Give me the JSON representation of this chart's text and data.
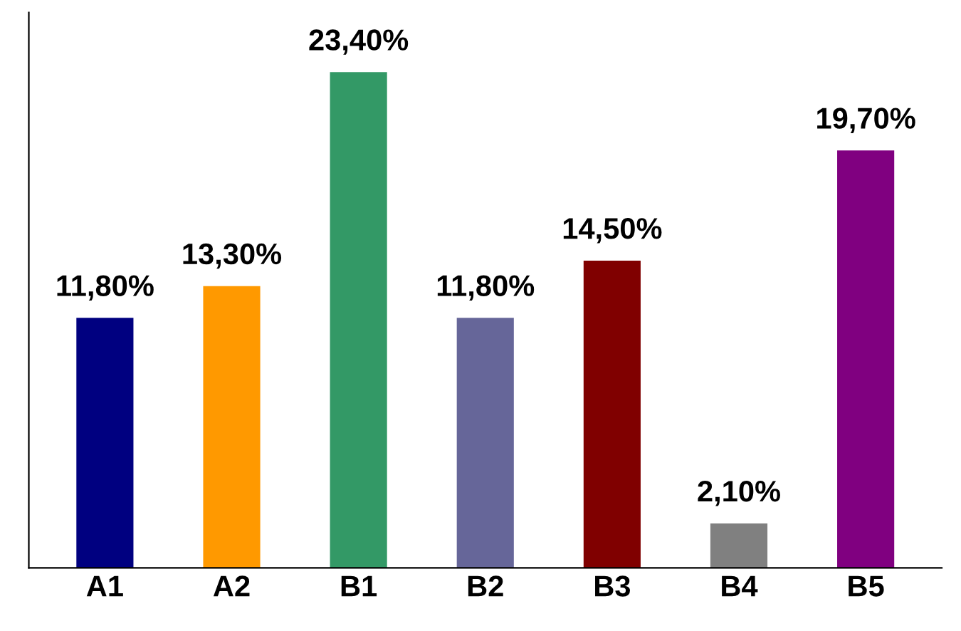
{
  "chart_data": {
    "type": "bar",
    "categories": [
      "A1",
      "A2",
      "B1",
      "B2",
      "B3",
      "B4",
      "B5"
    ],
    "values": [
      11.8,
      13.3,
      23.4,
      11.8,
      14.5,
      2.1,
      19.7
    ],
    "colors": [
      "#000080",
      "#ff9900",
      "#339966",
      "#666699",
      "#800000",
      "#808080",
      "#800080"
    ],
    "value_labels": [
      "11,80%",
      "13,30%",
      "23,40%",
      "11,80%",
      "14,50%",
      "2,10%",
      "19,70%"
    ],
    "grid": false,
    "legend": false,
    "tick_labels": "x"
  }
}
